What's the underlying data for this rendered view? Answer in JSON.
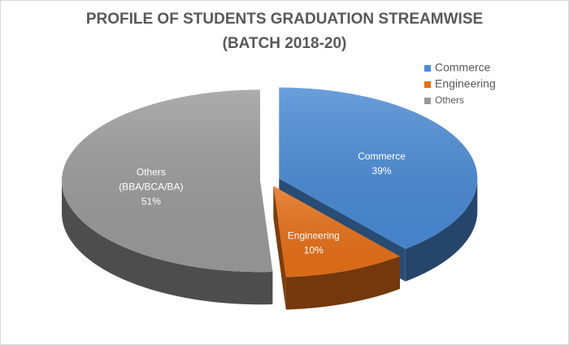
{
  "chart_data": {
    "type": "pie3d",
    "title_lines": [
      "PROFILE OF STUDENTS GRADUATION STREAMWISE",
      "(BATCH 2018-20)"
    ],
    "categories": [
      "Commerce",
      "Engineering",
      "Others"
    ],
    "values": [
      39,
      10,
      51
    ],
    "value_labels": [
      "39%",
      "10%",
      "51%"
    ],
    "slice_labels": [
      [
        "Commerce"
      ],
      [
        "Engineering"
      ],
      [
        "Others",
        "(BBA/BCA/BA)"
      ]
    ],
    "colors": [
      "#4a8ad4",
      "#e56f17",
      "#9a9a9a"
    ],
    "legend": "top-right"
  }
}
